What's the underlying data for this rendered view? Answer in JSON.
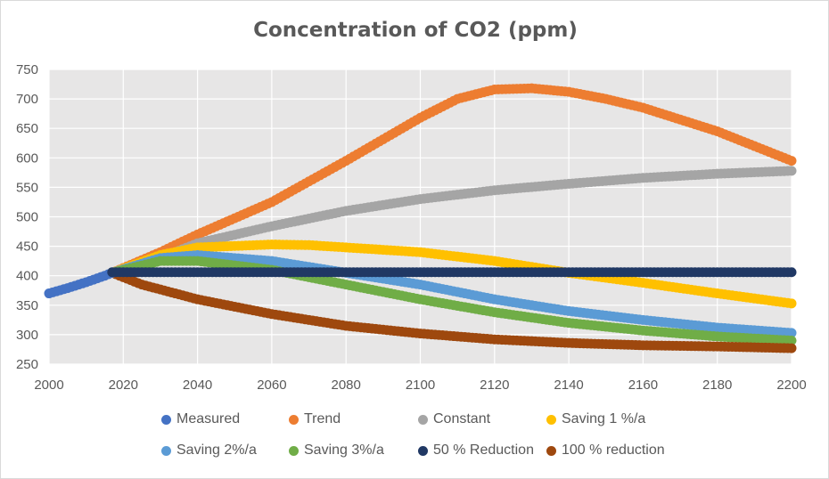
{
  "chart_data": {
    "type": "scatter",
    "title": "Concentration of CO2 (ppm)",
    "xlabel": "",
    "ylabel": "",
    "xlim": [
      2000,
      2200
    ],
    "ylim": [
      250,
      750
    ],
    "x_ticks": [
      "2000",
      "2020",
      "2040",
      "2060",
      "2080",
      "2100",
      "2120",
      "2140",
      "2160",
      "2180",
      "2200"
    ],
    "y_ticks": [
      "750",
      "700",
      "650",
      "600",
      "550",
      "500",
      "450",
      "400",
      "350",
      "300",
      "250"
    ],
    "grid": true,
    "legend_position": "bottom",
    "series": [
      {
        "name": "Measured",
        "color": "#4472c4",
        "points": [
          [
            2000,
            370
          ],
          [
            2005,
            379
          ],
          [
            2010,
            389
          ],
          [
            2015,
            400
          ],
          [
            2017,
            405
          ]
        ]
      },
      {
        "name": "Trend",
        "color": "#ed7d31",
        "points": [
          [
            2017,
            405
          ],
          [
            2030,
            440
          ],
          [
            2040,
            470
          ],
          [
            2060,
            525
          ],
          [
            2080,
            595
          ],
          [
            2100,
            668
          ],
          [
            2110,
            700
          ],
          [
            2120,
            716
          ],
          [
            2130,
            718
          ],
          [
            2140,
            712
          ],
          [
            2150,
            700
          ],
          [
            2160,
            685
          ],
          [
            2180,
            645
          ],
          [
            2200,
            595
          ]
        ]
      },
      {
        "name": "Constant",
        "color": "#a5a5a5",
        "points": [
          [
            2017,
            405
          ],
          [
            2030,
            430
          ],
          [
            2040,
            455
          ],
          [
            2060,
            484
          ],
          [
            2080,
            510
          ],
          [
            2100,
            530
          ],
          [
            2120,
            545
          ],
          [
            2140,
            556
          ],
          [
            2160,
            566
          ],
          [
            2180,
            573
          ],
          [
            2200,
            578
          ]
        ]
      },
      {
        "name": "Saving 1 %/a",
        "color": "#ffc000",
        "points": [
          [
            2017,
            405
          ],
          [
            2030,
            435
          ],
          [
            2040,
            448
          ],
          [
            2060,
            453
          ],
          [
            2070,
            452
          ],
          [
            2080,
            448
          ],
          [
            2100,
            440
          ],
          [
            2120,
            425
          ],
          [
            2140,
            405
          ],
          [
            2160,
            388
          ],
          [
            2180,
            370
          ],
          [
            2200,
            353
          ]
        ]
      },
      {
        "name": "Saving 2%/a",
        "color": "#5b9bd5",
        "points": [
          [
            2017,
            405
          ],
          [
            2030,
            430
          ],
          [
            2040,
            435
          ],
          [
            2060,
            425
          ],
          [
            2080,
            405
          ],
          [
            2100,
            385
          ],
          [
            2120,
            360
          ],
          [
            2140,
            340
          ],
          [
            2160,
            325
          ],
          [
            2180,
            312
          ],
          [
            2200,
            303
          ]
        ]
      },
      {
        "name": "Saving 3%/a",
        "color": "#70ad47",
        "points": [
          [
            2017,
            405
          ],
          [
            2030,
            425
          ],
          [
            2040,
            425
          ],
          [
            2060,
            410
          ],
          [
            2080,
            385
          ],
          [
            2100,
            360
          ],
          [
            2120,
            338
          ],
          [
            2140,
            320
          ],
          [
            2160,
            307
          ],
          [
            2180,
            297
          ],
          [
            2200,
            290
          ]
        ]
      },
      {
        "name": "50 % Reduction",
        "color": "#203864",
        "points": [
          [
            2017,
            406
          ],
          [
            2200,
            406
          ]
        ]
      },
      {
        "name": "100 % reduction",
        "color": "#9e480e",
        "points": [
          [
            2017,
            405
          ],
          [
            2025,
            385
          ],
          [
            2040,
            360
          ],
          [
            2060,
            335
          ],
          [
            2080,
            315
          ],
          [
            2100,
            302
          ],
          [
            2120,
            292
          ],
          [
            2140,
            286
          ],
          [
            2160,
            282
          ],
          [
            2180,
            280
          ],
          [
            2200,
            277
          ]
        ]
      }
    ]
  }
}
